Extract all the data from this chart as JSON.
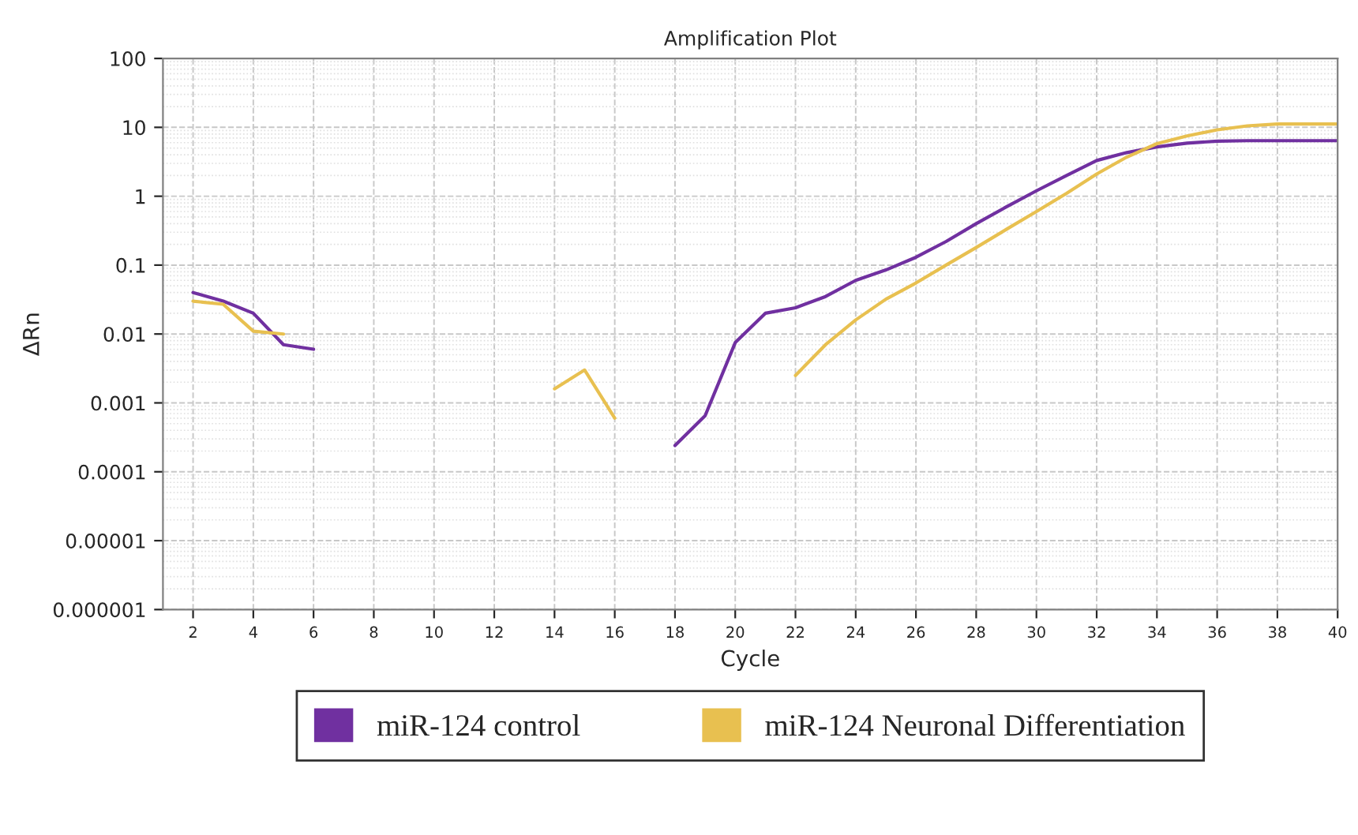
{
  "chart_data": {
    "type": "line",
    "title": "Amplification Plot",
    "xlabel": "Cycle",
    "ylabel": "ΔRn",
    "x": [
      2,
      3,
      4,
      5,
      6,
      7,
      8,
      9,
      10,
      11,
      12,
      13,
      14,
      15,
      16,
      17,
      18,
      19,
      20,
      21,
      22,
      23,
      24,
      25,
      26,
      27,
      28,
      29,
      30,
      31,
      32,
      33,
      34,
      35,
      36,
      37,
      38,
      39,
      40
    ],
    "series": [
      {
        "name": "miR-124 control",
        "color": "#7030a0",
        "values": [
          0.04,
          0.03,
          0.02,
          0.007,
          0.006,
          null,
          null,
          null,
          null,
          null,
          null,
          null,
          null,
          null,
          null,
          null,
          0.00024,
          0.00065,
          0.0075,
          0.02,
          0.024,
          0.035,
          0.06,
          0.085,
          0.13,
          0.22,
          0.4,
          0.7,
          1.2,
          2.0,
          3.3,
          4.3,
          5.2,
          5.9,
          6.3,
          6.4,
          6.4,
          6.4,
          6.4
        ]
      },
      {
        "name": "miR-124 Neuronal Differentiation",
        "color": "#e8c050",
        "values": [
          0.03,
          0.027,
          0.011,
          0.01,
          null,
          null,
          null,
          null,
          null,
          null,
          null,
          null,
          0.0016,
          0.003,
          0.0006,
          null,
          null,
          null,
          null,
          null,
          0.0025,
          0.007,
          0.016,
          0.032,
          0.055,
          0.1,
          0.18,
          0.33,
          0.6,
          1.1,
          2.1,
          3.7,
          5.8,
          7.5,
          9.2,
          10.5,
          11.2,
          11.2,
          11.2
        ]
      }
    ],
    "log": "y",
    "xlim": [
      1,
      40
    ],
    "xticks": [
      2,
      4,
      6,
      8,
      10,
      12,
      14,
      16,
      18,
      20,
      22,
      24,
      26,
      28,
      30,
      32,
      34,
      36,
      38,
      40
    ],
    "ylim": [
      1e-06,
      100
    ],
    "yticks": [
      {
        "value": 1e-06,
        "label": "0.000001"
      },
      {
        "value": 1e-05,
        "label": "0.00001"
      },
      {
        "value": 0.0001,
        "label": "0.0001"
      },
      {
        "value": 0.001,
        "label": "0.001"
      },
      {
        "value": 0.01,
        "label": "0.01"
      },
      {
        "value": 0.1,
        "label": "0.1"
      },
      1,
      10,
      100
    ],
    "grid": true,
    "legend": "bottom",
    "marker": "none",
    "line_style": "solid"
  }
}
